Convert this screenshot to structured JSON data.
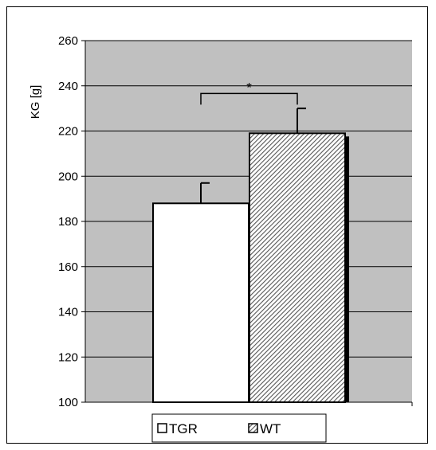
{
  "chart_data": {
    "type": "bar",
    "title": "",
    "xlabel": "",
    "ylabel": "KG [g]",
    "ylim": [
      100,
      260
    ],
    "ytick_step": 20,
    "grid": true,
    "legend_position": "bottom",
    "plot_background": "#c0c0c0",
    "series": [
      {
        "name": "TGR",
        "value": 188,
        "error": 9,
        "fill": "#ffffff",
        "pattern": "none"
      },
      {
        "name": "WT",
        "value": 219,
        "error": 11,
        "fill": "#ffffff",
        "pattern": "diagonal-hatch"
      }
    ],
    "significance": {
      "between": [
        "TGR",
        "WT"
      ],
      "label": "*",
      "y": 238
    }
  }
}
